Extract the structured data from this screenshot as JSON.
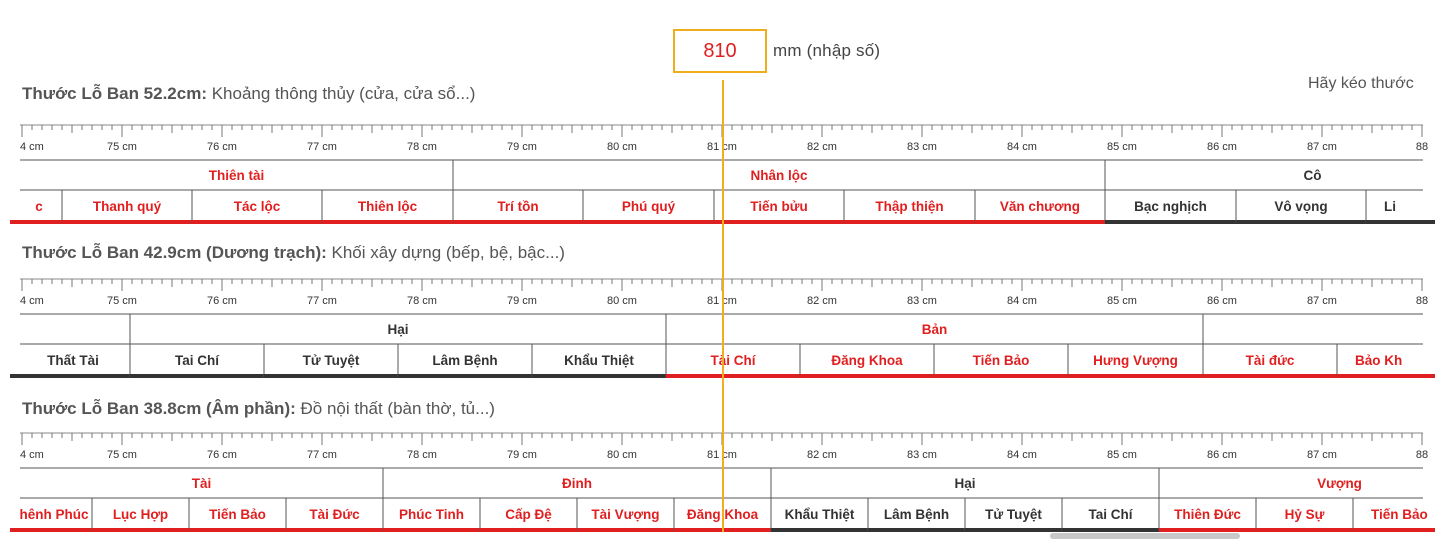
{
  "input": {
    "value": "810",
    "unit": "mm (nhập số)"
  },
  "hint": "Hãy kéo thước",
  "palette": {
    "good": "#e02020",
    "bad": "#333333",
    "needle": "#f0ad1e"
  },
  "rulers": [
    {
      "title_bold": "Thước Lỗ Ban 52.2cm:",
      "title_rest": " Khoảng thông thủy (cửa, cửa sổ...)",
      "ticks": [
        "4 cm",
        "75 cm",
        "76 cm",
        "77 cm",
        "78 cm",
        "79 cm",
        "80 cm",
        "81 cm",
        "82 cm",
        "83 cm",
        "84 cm",
        "85 cm",
        "86 cm",
        "87 cm",
        "88"
      ],
      "groups": [
        {
          "label": "Thiên tài",
          "good": true
        },
        {
          "label": "Nhân lộc",
          "good": true
        },
        {
          "label": "Cô",
          "good": false
        }
      ],
      "cells": [
        {
          "label": "c",
          "good": true
        },
        {
          "label": "Thanh quý",
          "good": true
        },
        {
          "label": "Tác lộc",
          "good": true
        },
        {
          "label": "Thiên lộc",
          "good": true
        },
        {
          "label": "Trí tồn",
          "good": true
        },
        {
          "label": "Phú quý",
          "good": true
        },
        {
          "label": "Tiến bửu",
          "good": true
        },
        {
          "label": "Thập thiện",
          "good": true
        },
        {
          "label": "Văn chương",
          "good": true
        },
        {
          "label": "Bạc nghịch",
          "good": false
        },
        {
          "label": "Vô vọng",
          "good": false
        },
        {
          "label": "Li",
          "good": false
        }
      ]
    },
    {
      "title_bold": "Thước Lỗ Ban 42.9cm (Dương trạch):",
      "title_rest": " Khối xây dựng (bếp, bệ, bậc...)",
      "ticks": [
        "4 cm",
        "75 cm",
        "76 cm",
        "77 cm",
        "78 cm",
        "79 cm",
        "80 cm",
        "81 cm",
        "82 cm",
        "83 cm",
        "84 cm",
        "85 cm",
        "86 cm",
        "87 cm",
        "88"
      ],
      "groups": [
        {
          "label": "",
          "good": false
        },
        {
          "label": "Hại",
          "good": false
        },
        {
          "label": "Bản",
          "good": true
        },
        {
          "label": "",
          "good": true
        }
      ],
      "cells": [
        {
          "label": "Thất Tài",
          "good": false
        },
        {
          "label": "Tai Chí",
          "good": false
        },
        {
          "label": "Tử Tuyệt",
          "good": false
        },
        {
          "label": "Lâm Bệnh",
          "good": false
        },
        {
          "label": "Khẩu Thiệt",
          "good": false
        },
        {
          "label": "Tài Chí",
          "good": true
        },
        {
          "label": "Đăng Khoa",
          "good": true
        },
        {
          "label": "Tiến Bảo",
          "good": true
        },
        {
          "label": "Hưng Vượng",
          "good": true
        },
        {
          "label": "Tài đức",
          "good": true
        },
        {
          "label": "Bảo Kh",
          "good": true
        }
      ]
    },
    {
      "title_bold": "Thước Lỗ Ban 38.8cm (Âm phần):",
      "title_rest": " Đồ nội thất (bàn thờ, tủ...)",
      "ticks": [
        "4 cm",
        "75 cm",
        "76 cm",
        "77 cm",
        "78 cm",
        "79 cm",
        "80 cm",
        "81 cm",
        "82 cm",
        "83 cm",
        "84 cm",
        "85 cm",
        "86 cm",
        "87 cm",
        "88"
      ],
      "groups": [
        {
          "label": "Tài",
          "good": true
        },
        {
          "label": "Đinh",
          "good": true
        },
        {
          "label": "Hại",
          "good": false
        },
        {
          "label": "Vượng",
          "good": true
        }
      ],
      "cells": [
        {
          "label": "hênh Phúc",
          "good": true
        },
        {
          "label": "Lục Hợp",
          "good": true
        },
        {
          "label": "Tiến Bảo",
          "good": true
        },
        {
          "label": "Tài Đức",
          "good": true
        },
        {
          "label": "Phúc Tinh",
          "good": true
        },
        {
          "label": "Cấp Đệ",
          "good": true
        },
        {
          "label": "Tài Vượng",
          "good": true
        },
        {
          "label": "Đăng Khoa",
          "good": true
        },
        {
          "label": "Khẩu Thiệt",
          "good": false
        },
        {
          "label": "Lâm Bệnh",
          "good": false
        },
        {
          "label": "Tử Tuyệt",
          "good": false
        },
        {
          "label": "Tai Chí",
          "good": false
        },
        {
          "label": "Thiên Đức",
          "good": true
        },
        {
          "label": "Hỷ Sự",
          "good": true
        },
        {
          "label": "Tiến Bảo",
          "good": true
        }
      ]
    }
  ]
}
